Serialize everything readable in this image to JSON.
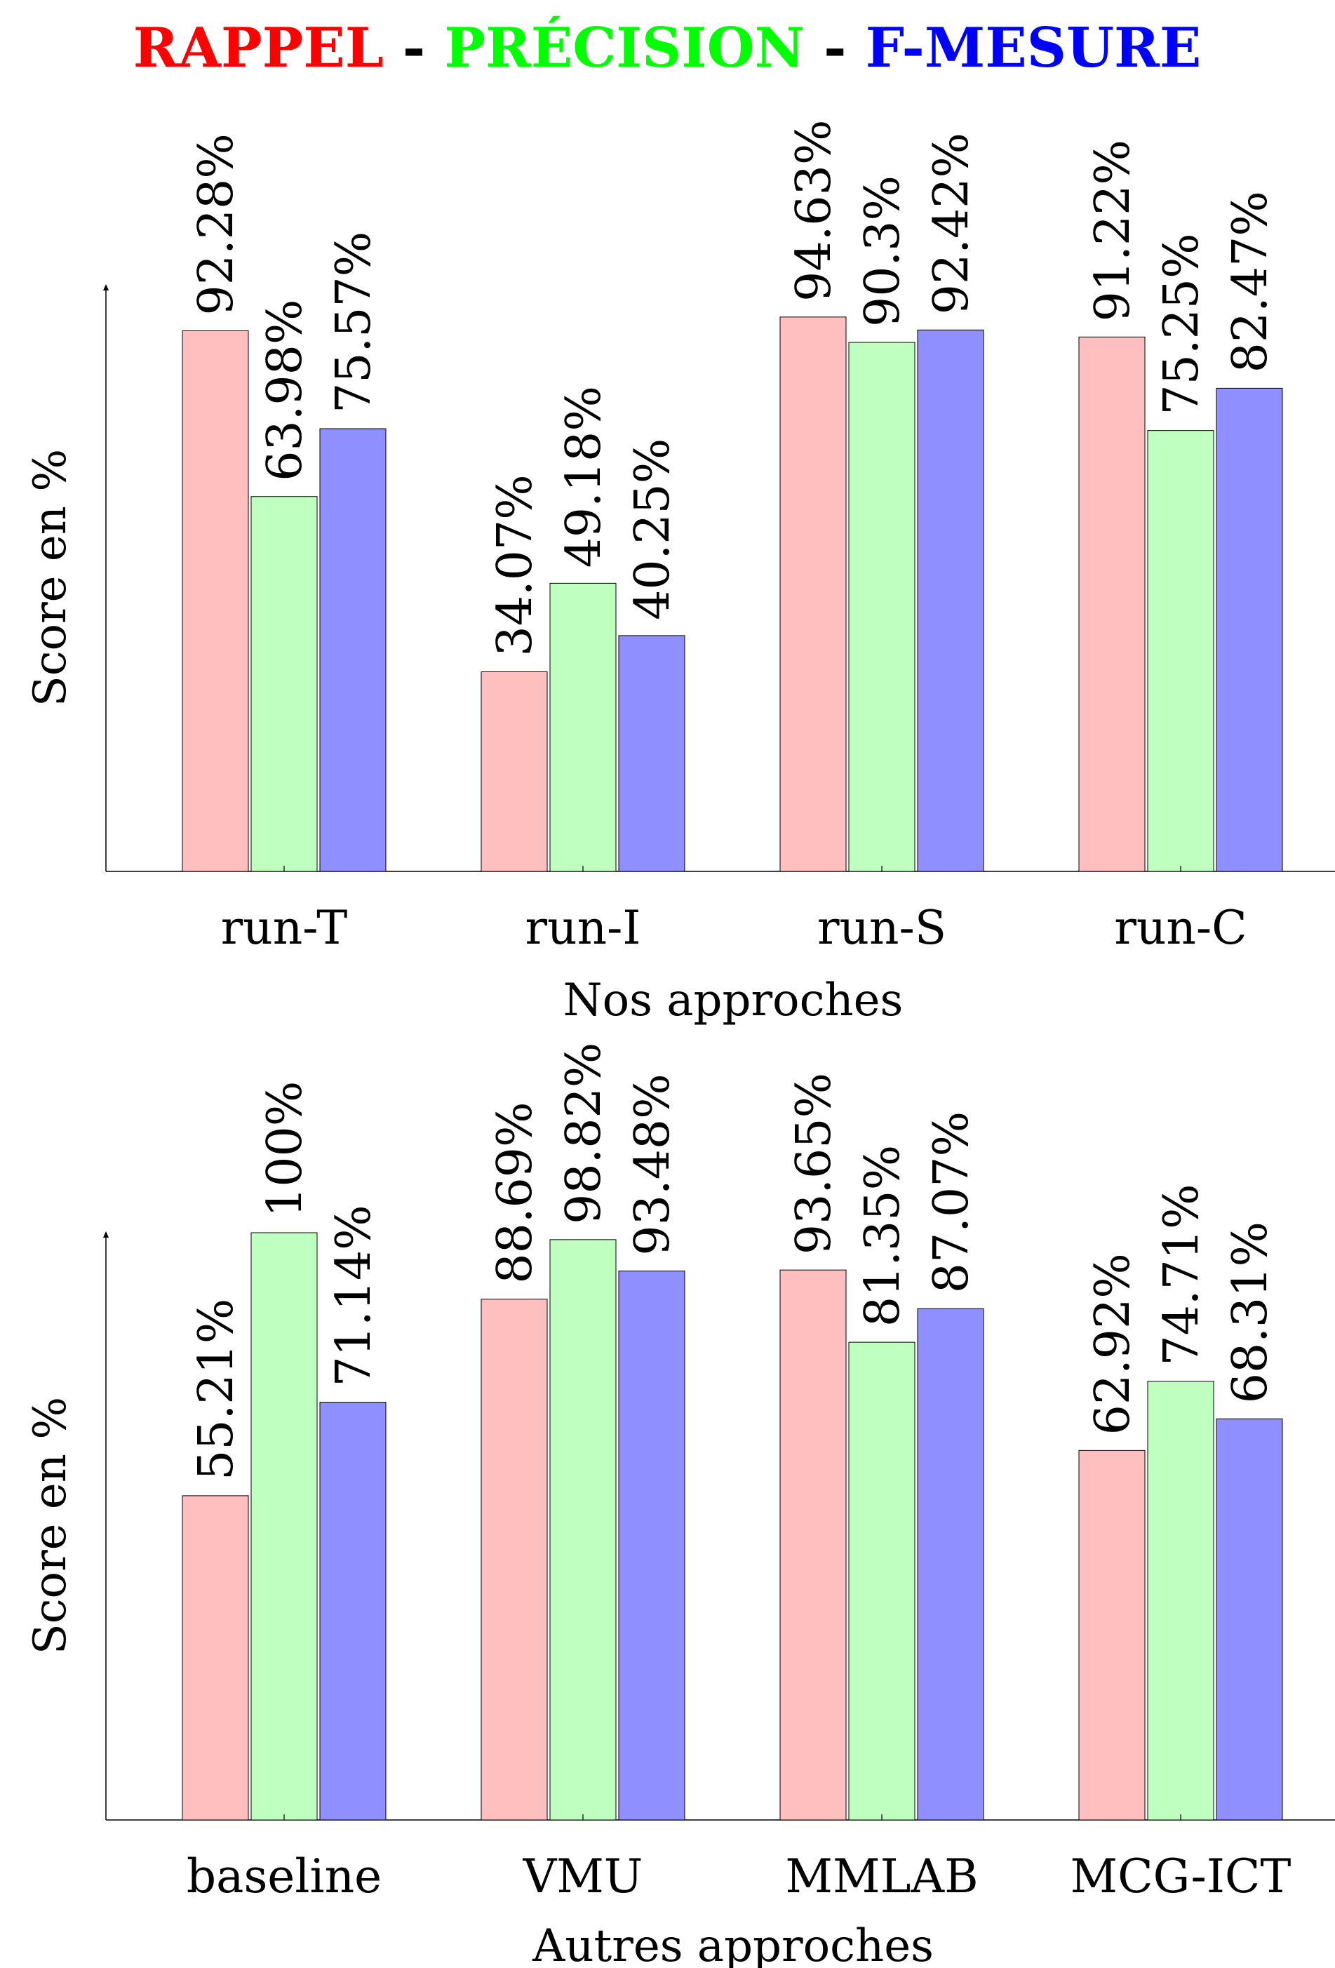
{
  "title": {
    "parts": [
      {
        "text": "RAPPEL",
        "color": "#ff0000"
      },
      {
        "text": " - ",
        "color": "#000000"
      },
      {
        "text": "PRÉCISION",
        "color": "#00ff00"
      },
      {
        "text": " - ",
        "color": "#000000"
      },
      {
        "text": "F-MESURE",
        "color": "#0000ff"
      }
    ]
  },
  "series_colors": [
    "#ffbfbf",
    "#bfffbf",
    "#8f8fff"
  ],
  "chart_data": [
    {
      "type": "bar",
      "xlabel": "Nos approches",
      "ylabel": "Score en %",
      "ylim": [
        0,
        100
      ],
      "grid": false,
      "categories": [
        "run-T",
        "run-I",
        "run-S",
        "run-C"
      ],
      "series": [
        {
          "values": [
            92.28,
            34.07,
            94.63,
            91.22
          ],
          "labels": [
            "92.28%",
            "34.07%",
            "94.63%",
            "91.22%"
          ]
        },
        {
          "values": [
            63.98,
            49.18,
            90.3,
            75.25
          ],
          "labels": [
            "63.98%",
            "49.18%",
            "90.3%",
            "75.25%"
          ]
        },
        {
          "values": [
            75.57,
            40.25,
            92.42,
            82.47
          ],
          "labels": [
            "75.57%",
            "40.25%",
            "92.42%",
            "82.47%"
          ]
        }
      ]
    },
    {
      "type": "bar",
      "xlabel": "Autres approches",
      "ylabel": "Score en %",
      "ylim": [
        0,
        100
      ],
      "grid": false,
      "categories": [
        "baseline",
        "VMU",
        "MMLAB",
        "MCG-ICT"
      ],
      "series": [
        {
          "values": [
            55.21,
            88.69,
            93.65,
            62.92
          ],
          "labels": [
            "55.21%",
            "88.69%",
            "93.65%",
            "62.92%"
          ]
        },
        {
          "values": [
            100,
            98.82,
            81.35,
            74.71
          ],
          "labels": [
            "100%",
            "98.82%",
            "81.35%",
            "74.71%"
          ]
        },
        {
          "values": [
            71.14,
            93.48,
            87.07,
            68.31
          ],
          "labels": [
            "71.14%",
            "93.48%",
            "87.07%",
            "68.31%"
          ]
        }
      ]
    }
  ]
}
